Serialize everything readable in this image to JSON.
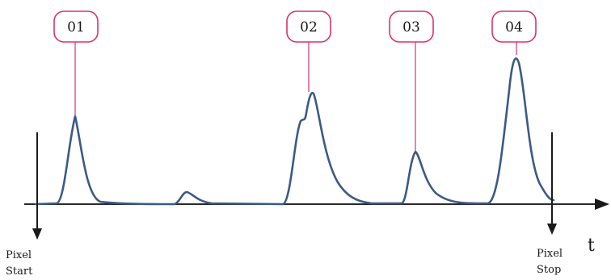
{
  "peaks": [
    {
      "label": "01"
    },
    {
      "label": "02"
    },
    {
      "label": "03"
    },
    {
      "label": "04"
    }
  ],
  "axis": {
    "label": "t"
  },
  "markers": {
    "start": {
      "line1": "Pixel",
      "line2": "Start"
    },
    "stop": {
      "line1": "Pixel",
      "line2": "Stop"
    }
  },
  "colors": {
    "trace": "#3c5a85",
    "label_border": "#d9346a",
    "leader": "#e0417a",
    "axis": "#2a2a2a"
  }
}
